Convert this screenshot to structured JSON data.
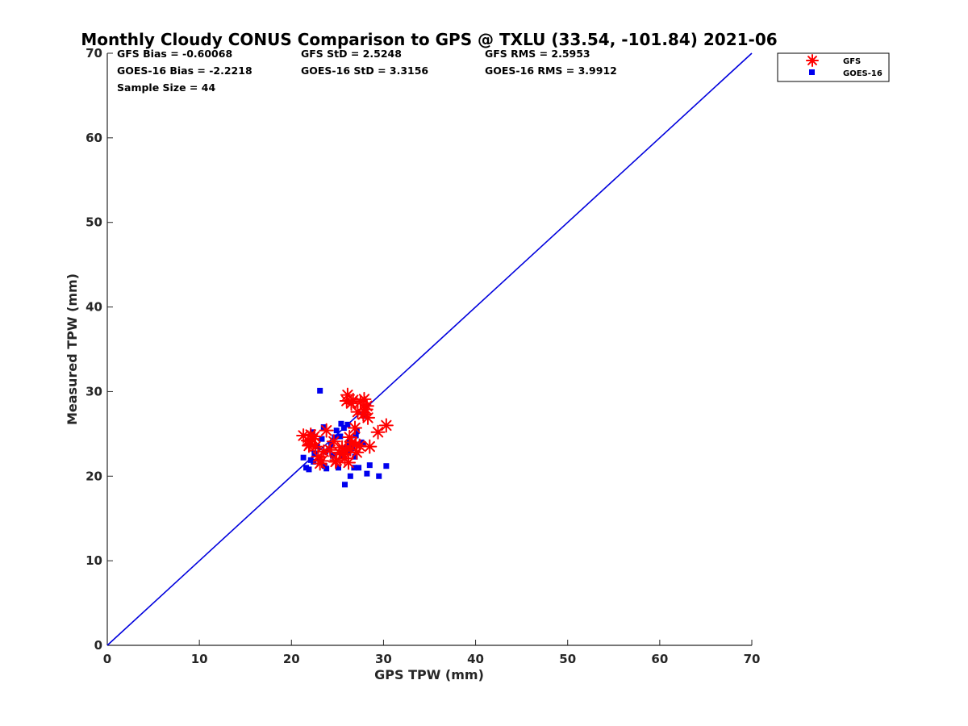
{
  "chart_data": {
    "type": "scatter",
    "title": "Monthly Cloudy CONUS Comparison to GPS @ TXLU (33.54, -101.84) 2021-06",
    "xlabel": "GPS TPW (mm)",
    "ylabel": "Measured TPW (mm)",
    "xlim": [
      0,
      70
    ],
    "ylim": [
      0,
      70
    ],
    "xticks": [
      0,
      10,
      20,
      30,
      40,
      50,
      60,
      70
    ],
    "yticks": [
      0,
      10,
      20,
      30,
      40,
      50,
      60,
      70
    ],
    "grid": false,
    "legend_position": "top-right",
    "reference_line": {
      "x": [
        0,
        70
      ],
      "y": [
        0,
        70
      ],
      "color": "#0000dd"
    },
    "stats": [
      [
        "GFS Bias = -0.60068",
        "GFS StD = 2.5248",
        "GFS RMS = 2.5953"
      ],
      [
        "GOES-16 Bias = -2.2218",
        "GOES-16 StD = 3.3156",
        "GOES-16 RMS = 3.9912"
      ],
      [
        "Sample Size = 44"
      ]
    ],
    "series": [
      {
        "name": "GFS",
        "marker": "asterisk",
        "color": "#ff0000",
        "points": [
          [
            21.3,
            24.8
          ],
          [
            21.8,
            24.2
          ],
          [
            21.9,
            23.6
          ],
          [
            22.1,
            24.9
          ],
          [
            22.3,
            24.4
          ],
          [
            22.6,
            23.5
          ],
          [
            22.9,
            22.3
          ],
          [
            23.1,
            21.5
          ],
          [
            23.5,
            22.9
          ],
          [
            23.8,
            25.4
          ],
          [
            24.2,
            23.1
          ],
          [
            24.6,
            24.1
          ],
          [
            24.8,
            21.7
          ],
          [
            25.2,
            22.8
          ],
          [
            25.5,
            23.4
          ],
          [
            25.8,
            22.1
          ],
          [
            26.0,
            28.9
          ],
          [
            26.1,
            29.6
          ],
          [
            26.2,
            21.6
          ],
          [
            26.3,
            24.6
          ],
          [
            26.4,
            23.2
          ],
          [
            26.7,
            29.0
          ],
          [
            26.9,
            25.7
          ],
          [
            27.1,
            22.8
          ],
          [
            27.2,
            27.6
          ],
          [
            27.4,
            23.6
          ],
          [
            27.5,
            28.8
          ],
          [
            27.9,
            29.1
          ],
          [
            28.1,
            27.9
          ],
          [
            28.3,
            26.9
          ],
          [
            28.5,
            23.5
          ],
          [
            29.4,
            25.2
          ],
          [
            30.3,
            26.0
          ],
          [
            22.5,
            24.7
          ],
          [
            23.3,
            21.8
          ],
          [
            24.9,
            21.9
          ],
          [
            25.9,
            23.0
          ],
          [
            26.6,
            24.0
          ],
          [
            27.8,
            27.3
          ],
          [
            28.2,
            28.3
          ],
          [
            26.5,
            28.6
          ],
          [
            22.0,
            23.8
          ],
          [
            25.6,
            22.6
          ],
          [
            27.0,
            23.7
          ]
        ]
      },
      {
        "name": "GOES-16",
        "marker": "square",
        "color": "#0000ee",
        "points": [
          [
            21.3,
            22.2
          ],
          [
            21.6,
            21.0
          ],
          [
            21.9,
            20.8
          ],
          [
            22.1,
            21.9
          ],
          [
            22.3,
            25.2
          ],
          [
            22.5,
            22.7
          ],
          [
            22.8,
            23.5
          ],
          [
            23.0,
            22.1
          ],
          [
            23.1,
            30.1
          ],
          [
            23.3,
            24.4
          ],
          [
            23.5,
            25.8
          ],
          [
            23.6,
            21.2
          ],
          [
            23.8,
            20.9
          ],
          [
            24.1,
            23.1
          ],
          [
            24.5,
            22.4
          ],
          [
            24.7,
            24.6
          ],
          [
            24.9,
            25.4
          ],
          [
            25.1,
            21.0
          ],
          [
            25.3,
            24.7
          ],
          [
            25.5,
            22.5
          ],
          [
            25.7,
            25.7
          ],
          [
            25.8,
            19.0
          ],
          [
            26.0,
            23.4
          ],
          [
            26.1,
            26.1
          ],
          [
            26.2,
            22.9
          ],
          [
            26.3,
            24.0
          ],
          [
            26.4,
            20.0
          ],
          [
            26.6,
            23.3
          ],
          [
            26.8,
            21.0
          ],
          [
            27.0,
            24.8
          ],
          [
            27.1,
            25.3
          ],
          [
            27.3,
            21.0
          ],
          [
            27.8,
            23.8
          ],
          [
            28.0,
            27.1
          ],
          [
            28.2,
            20.3
          ],
          [
            28.5,
            21.3
          ],
          [
            29.5,
            20.0
          ],
          [
            30.3,
            21.2
          ],
          [
            22.4,
            21.7
          ],
          [
            23.7,
            22.9
          ],
          [
            24.3,
            23.7
          ],
          [
            25.4,
            26.2
          ],
          [
            26.9,
            22.3
          ],
          [
            27.6,
            24.0
          ]
        ]
      }
    ]
  }
}
